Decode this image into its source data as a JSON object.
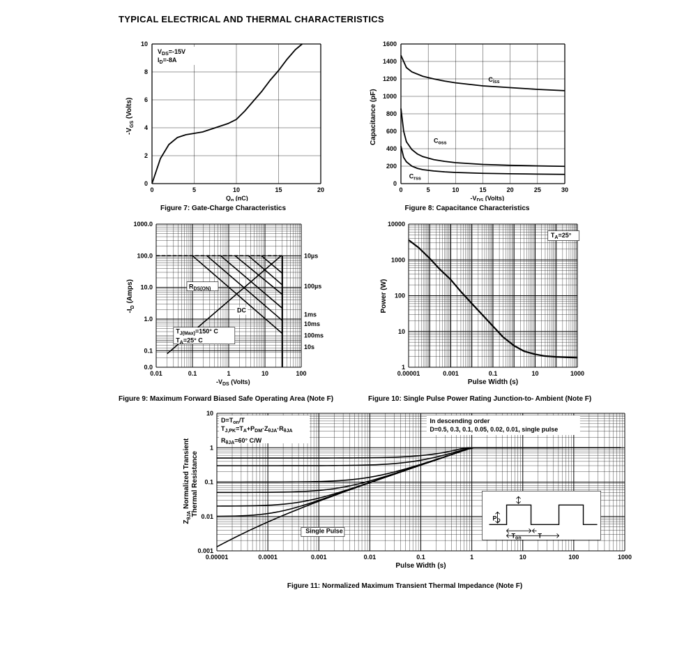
{
  "title": "TYPICAL ELECTRICAL AND THERMAL CHARACTERISTICS",
  "colors": {
    "line": "#000000",
    "grid": "#000000",
    "bg": "#ffffff"
  },
  "fig7": {
    "type": "line",
    "caption": "Figure 7: Gate-Charge Characteristics",
    "xlabel": "Qg (nC)",
    "ylabel": "-VGS (Volts)",
    "xlim": [
      0,
      20
    ],
    "xticks": [
      0,
      5,
      10,
      15,
      20
    ],
    "ylim": [
      0,
      10
    ],
    "yticks": [
      0,
      2,
      4,
      6,
      8,
      10
    ],
    "annot": [
      "VDS=-15V",
      "ID=-8A"
    ],
    "points": [
      [
        0,
        0
      ],
      [
        1,
        1.8
      ],
      [
        2,
        2.8
      ],
      [
        3,
        3.3
      ],
      [
        4,
        3.5
      ],
      [
        5,
        3.6
      ],
      [
        6,
        3.7
      ],
      [
        7,
        3.9
      ],
      [
        8,
        4.1
      ],
      [
        9,
        4.3
      ],
      [
        10,
        4.6
      ],
      [
        11,
        5.2
      ],
      [
        12,
        5.9
      ],
      [
        13,
        6.6
      ],
      [
        14,
        7.4
      ],
      [
        15,
        8.1
      ],
      [
        16,
        8.9
      ],
      [
        17,
        9.6
      ],
      [
        17.8,
        10
      ]
    ],
    "line_color": "#000000",
    "line_width": 1.8,
    "grid_color": "#000000"
  },
  "fig8": {
    "type": "line",
    "caption": "Figure 8: Capacitance Characteristics",
    "xlabel": "-VDS (Volts)",
    "ylabel": "Capacitance (pF)",
    "xlim": [
      0,
      30
    ],
    "xticks": [
      0,
      5,
      10,
      15,
      20,
      25,
      30
    ],
    "ylim": [
      0,
      1600
    ],
    "yticks": [
      0,
      200,
      400,
      600,
      800,
      1000,
      1200,
      1400,
      1600
    ],
    "series": [
      {
        "label": "Ciss",
        "label_pos": [
          16,
          1170
        ],
        "points": [
          [
            0,
            1470
          ],
          [
            1,
            1330
          ],
          [
            2,
            1280
          ],
          [
            4,
            1230
          ],
          [
            6,
            1200
          ],
          [
            8,
            1175
          ],
          [
            10,
            1155
          ],
          [
            15,
            1120
          ],
          [
            20,
            1100
          ],
          [
            25,
            1080
          ],
          [
            30,
            1065
          ]
        ]
      },
      {
        "label": "Coss",
        "label_pos": [
          6,
          470
        ],
        "points": [
          [
            0,
            860
          ],
          [
            0.5,
            600
          ],
          [
            1,
            480
          ],
          [
            2,
            390
          ],
          [
            3,
            340
          ],
          [
            4,
            310
          ],
          [
            6,
            275
          ],
          [
            8,
            255
          ],
          [
            10,
            240
          ],
          [
            15,
            220
          ],
          [
            20,
            210
          ],
          [
            25,
            203
          ],
          [
            30,
            198
          ]
        ]
      },
      {
        "label": "Crss",
        "label_pos": [
          1.5,
          60
        ],
        "points": [
          [
            0,
            430
          ],
          [
            0.5,
            300
          ],
          [
            1,
            250
          ],
          [
            2,
            200
          ],
          [
            3,
            175
          ],
          [
            4,
            160
          ],
          [
            6,
            145
          ],
          [
            8,
            135
          ],
          [
            10,
            128
          ],
          [
            15,
            118
          ],
          [
            20,
            113
          ],
          [
            25,
            109
          ],
          [
            30,
            106
          ]
        ]
      }
    ],
    "line_color": "#000000",
    "line_width": 1.8,
    "grid_color": "#000000"
  },
  "fig9": {
    "type": "loglog",
    "caption": "Figure 9: Maximum Forward Biased Safe\nOperating Area (Note F)",
    "xlabel": "-VDS (Volts)",
    "ylabel": "-ID (Amps)",
    "xlim": [
      0.01,
      100
    ],
    "xticks": [
      "0.01",
      "0.1",
      "1",
      "10",
      "100"
    ],
    "ylim": [
      0.0,
      1000
    ],
    "yticks": [
      "0.0",
      "0.1",
      "1.0",
      "10.0",
      "100.0",
      "1000.0"
    ],
    "annot_left": [
      "TJ(Max)=150°  C",
      "TA=25°  C"
    ],
    "annot_rdson": "RDS(ON)",
    "annot_dc": "DC",
    "pulse_labels": [
      "10µs",
      "100µs",
      "1ms",
      "10ms",
      "100ms",
      "10s"
    ],
    "vlimit": 30,
    "rdson_line": [
      [
        0.02,
        0.08
      ],
      [
        28,
        100
      ]
    ],
    "ilimit": 100,
    "dc_lines": [
      [
        [
          1.5,
          100
        ],
        [
          30,
          6
        ]
      ],
      [
        [
          3.5,
          100
        ],
        [
          30,
          12
        ]
      ],
      [
        [
          8,
          100
        ],
        [
          30,
          28
        ]
      ],
      [
        [
          30,
          100
        ],
        [
          30,
          100
        ]
      ],
      [
        [
          0.6,
          100
        ],
        [
          30,
          2.2
        ]
      ],
      [
        [
          0.25,
          100
        ],
        [
          30,
          0.9
        ]
      ],
      [
        [
          0.1,
          100
        ],
        [
          30,
          0.35
        ]
      ]
    ],
    "line_color": "#000000",
    "line_width": 1.6
  },
  "fig10": {
    "type": "loglog",
    "caption": "Figure 10: Single Pulse Power Rating Junction-to-\nAmbient (Note F)",
    "xlabel": "Pulse Width (s)",
    "ylabel": "Power (W)",
    "xlim": [
      1e-05,
      1000
    ],
    "xticks": [
      "0.00001",
      "0.001",
      "0.1",
      "10",
      "1000"
    ],
    "ylim": [
      1,
      10000
    ],
    "yticks": [
      "1",
      "10",
      "100",
      "1000",
      "10000"
    ],
    "annot": "TA=25°",
    "points": [
      [
        1e-05,
        3600
      ],
      [
        3e-05,
        2200
      ],
      [
        0.0001,
        1100
      ],
      [
        0.0003,
        550
      ],
      [
        0.001,
        280
      ],
      [
        0.003,
        130
      ],
      [
        0.01,
        60
      ],
      [
        0.03,
        30
      ],
      [
        0.1,
        14
      ],
      [
        0.3,
        7
      ],
      [
        1,
        4
      ],
      [
        3,
        2.8
      ],
      [
        10,
        2.3
      ],
      [
        30,
        2.05
      ],
      [
        100,
        1.95
      ],
      [
        300,
        1.9
      ],
      [
        1000,
        1.85
      ]
    ],
    "line_color": "#000000",
    "line_width": 2.2
  },
  "fig11": {
    "type": "loglog",
    "caption": "Figure 11: Normalized Maximum Transient Thermal Impedance (Note F)",
    "xlabel": "Pulse Width (s)",
    "ylabel": "ZθJA Normalized Transient\nThermal Resistance",
    "xlim": [
      1e-05,
      1000
    ],
    "xticks": [
      "0.00001",
      "0.0001",
      "0.001",
      "0.01",
      "0.1",
      "1",
      "10",
      "100",
      "1000"
    ],
    "ylim": [
      0.001,
      10
    ],
    "yticks": [
      "0.001",
      "0.01",
      "0.1",
      "1",
      "10"
    ],
    "annot_left": [
      "D=Ton/T",
      "TJ,PK=TA+PDM·ZθJA·RθJA",
      "RθJA=60°  C/W"
    ],
    "annot_right": [
      "In descending order",
      "D=0.5, 0.3, 0.1, 0.05, 0.02, 0.01, single pulse"
    ],
    "single_pulse_label": "Single Pulse",
    "d_values": [
      0.5,
      0.3,
      0.1,
      0.05,
      0.02,
      0.01
    ],
    "pulse_diagram": {
      "pd": "PD",
      "ton": "Ton",
      "T": "T"
    },
    "line_color": "#000000",
    "line_width": 1.6
  }
}
